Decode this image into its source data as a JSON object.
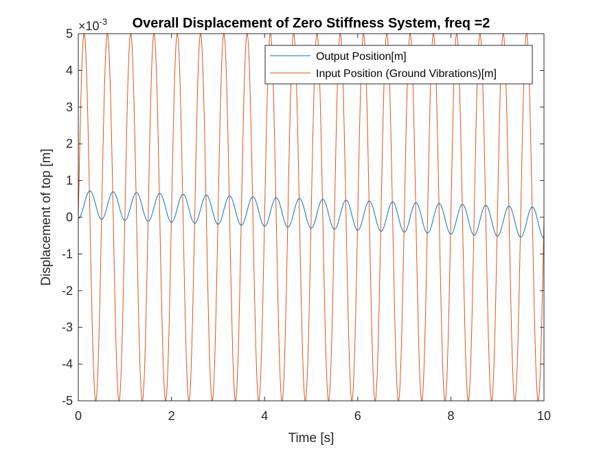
{
  "chart_data": {
    "type": "line",
    "title": "Overall Displacement of Zero Stiffness System, freq =2",
    "xlabel": "Time [s]",
    "ylabel": "Displacement of top [m]",
    "xlim": [
      0,
      10
    ],
    "ylim": [
      -5,
      5
    ],
    "y_exponent_label": "×10",
    "y_exponent_power": "-3",
    "x_ticks": [
      0,
      2,
      4,
      6,
      8,
      10
    ],
    "y_ticks": [
      -5,
      -4,
      -3,
      -2,
      -1,
      0,
      1,
      2,
      3,
      4,
      5
    ],
    "grid": false,
    "legend_position": "top-right",
    "frequency_hz": 2,
    "series": [
      {
        "name": "Output Position[m]",
        "color": "#0072BD",
        "model": "sinusoid with slowly shifting offset",
        "amplitude": 0.4,
        "offset_start": 0.35,
        "offset_end": -0.15
      },
      {
        "name": "Input Position (Ground Vibrations)[m]",
        "color": "#D95319",
        "model": "sinusoid",
        "amplitude": 5
      }
    ]
  }
}
